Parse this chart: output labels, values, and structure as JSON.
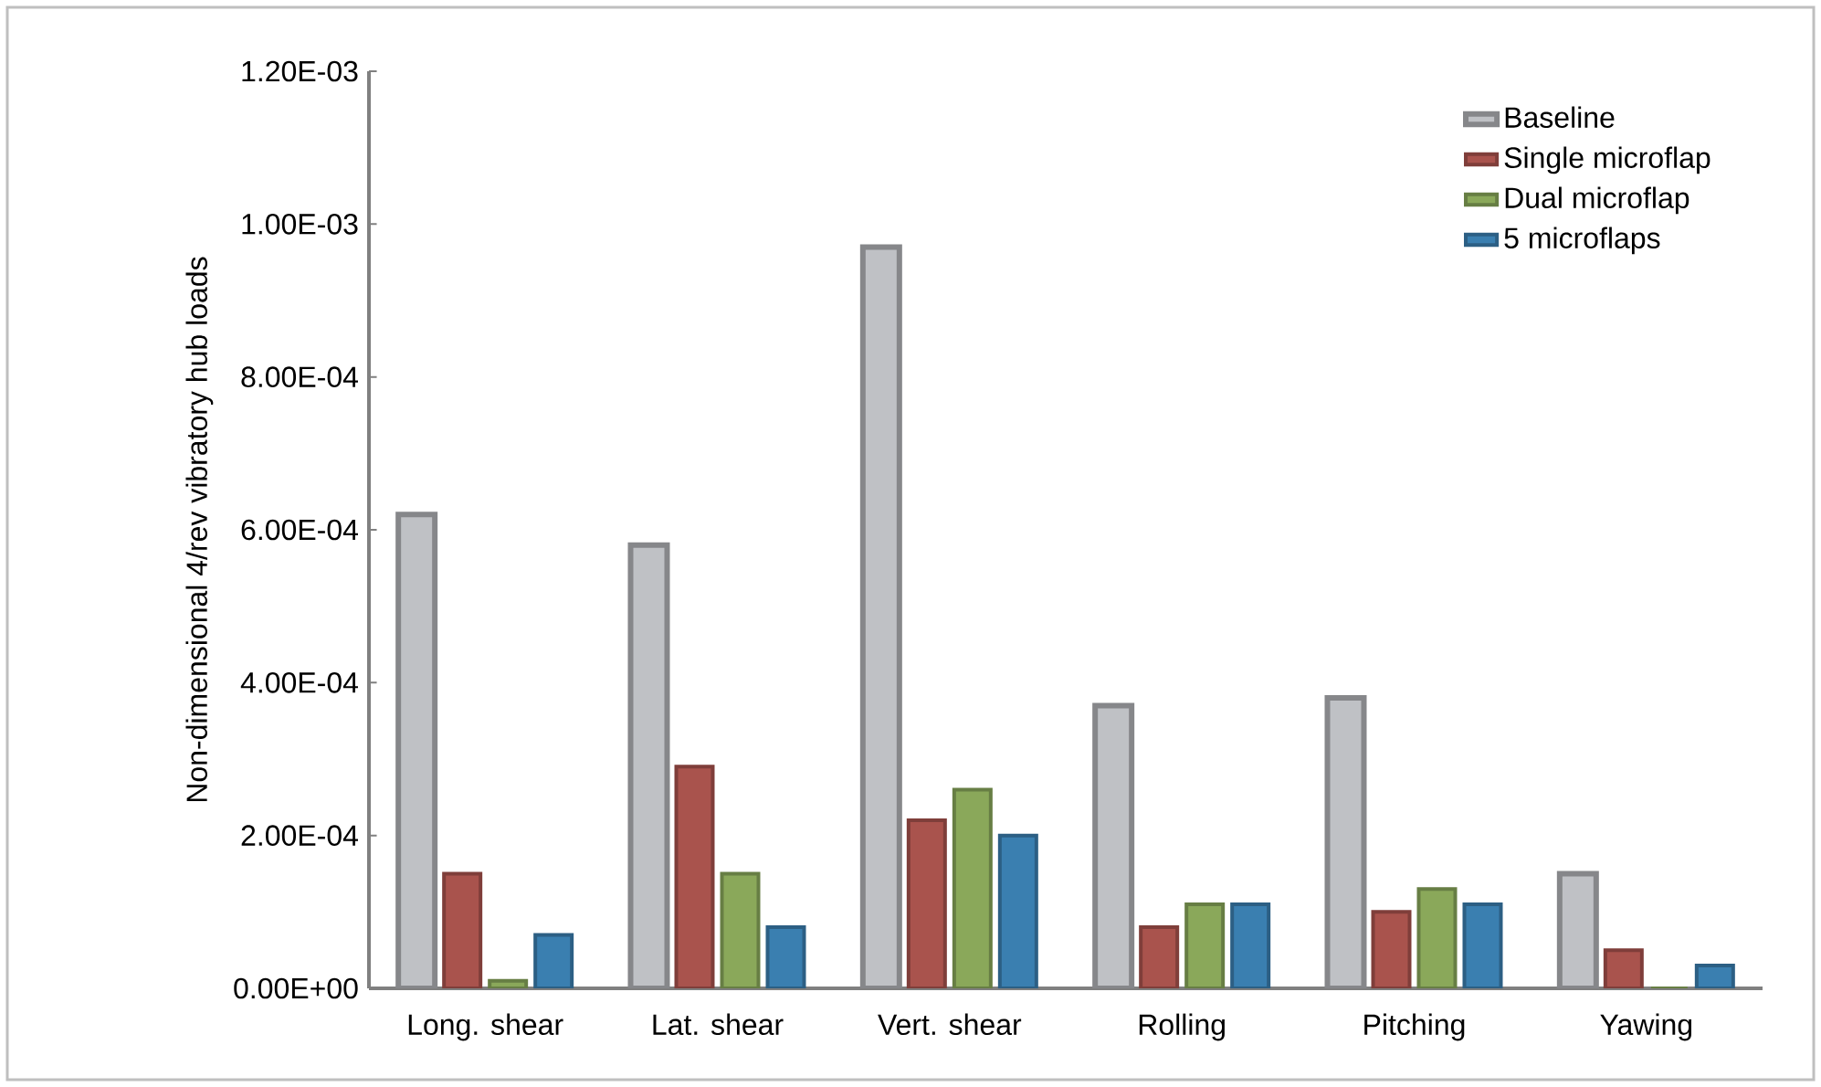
{
  "chart_data": {
    "type": "bar",
    "ylabel": "Non-dimensional 4/rev vibratory hub loads",
    "categories": [
      "Long. shear",
      "Lat. shear",
      "Vert. shear",
      "Rolling",
      "Pitching",
      "Yawing"
    ],
    "series": [
      {
        "name": "Baseline",
        "color": "#bfc1c5",
        "values": [
          0.00062,
          0.00058,
          0.00097,
          0.00037,
          0.00038,
          0.00015
        ]
      },
      {
        "name": "Single microflap",
        "color": "#a9534d",
        "values": [
          0.00015,
          0.00029,
          0.00022,
          8e-05,
          0.0001,
          5e-05
        ]
      },
      {
        "name": "Dual microflap",
        "color": "#8aa85a",
        "values": [
          1e-05,
          0.00015,
          0.00026,
          0.00011,
          0.00013,
          0
        ]
      },
      {
        "name": "5 microflaps",
        "color": "#3a7fb0",
        "values": [
          7e-05,
          8e-05,
          0.0002,
          0.00011,
          0.00011,
          3e-05
        ]
      }
    ],
    "ylim": [
      0,
      0.0012
    ],
    "yticks": [
      {
        "value": 0,
        "label": "0.00E+00"
      },
      {
        "value": 0.0002,
        "label": "2.00E-04"
      },
      {
        "value": 0.0004,
        "label": "4.00E-04"
      },
      {
        "value": 0.0006,
        "label": "6.00E-04"
      },
      {
        "value": 0.0008,
        "label": "8.00E-04"
      },
      {
        "value": 0.001,
        "label": "1.00E-03"
      },
      {
        "value": 0.0012,
        "label": "1.20E-03"
      }
    ],
    "legend": "top right"
  }
}
